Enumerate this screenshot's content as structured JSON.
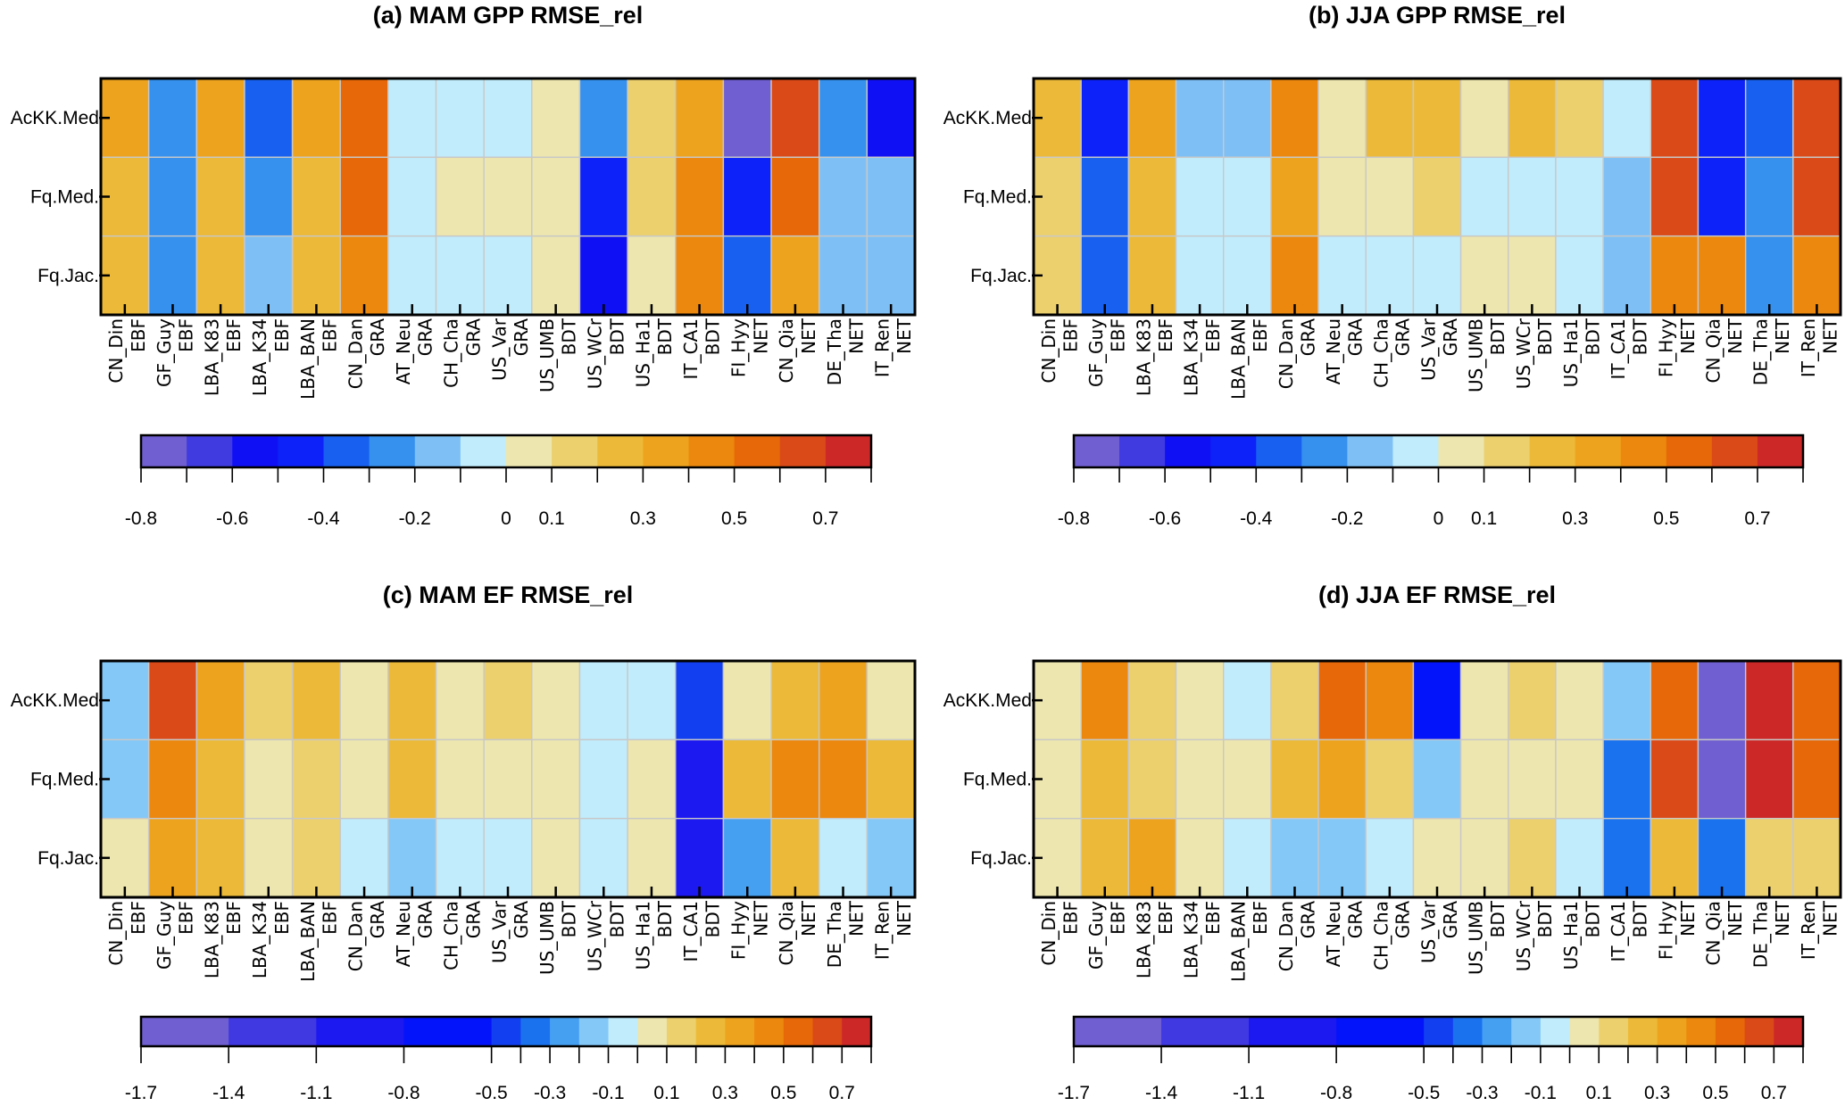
{
  "chart_data": [
    {
      "type": "heatmap",
      "id": "a",
      "title": "(a) MAM GPP RMSE_rel",
      "rows": [
        "AcKK.Med",
        "Fq.Med.",
        "Fq.Jac."
      ],
      "columns": [
        [
          "CN_Din",
          "EBF"
        ],
        [
          "GF_Guy",
          "EBF"
        ],
        [
          "LBA_K83",
          "EBF"
        ],
        [
          "LBA_K34",
          "EBF"
        ],
        [
          "LBA_BAN",
          "EBF"
        ],
        [
          "CN_Dan",
          "GRA"
        ],
        [
          "AT_Neu",
          "GRA"
        ],
        [
          "CH_Cha",
          "GRA"
        ],
        [
          "US_Var",
          "GRA"
        ],
        [
          "US_UMB",
          "BDT"
        ],
        [
          "US_WCr",
          "BDT"
        ],
        [
          "US_Ha1",
          "BDT"
        ],
        [
          "IT_CA1",
          "BDT"
        ],
        [
          "FI_Hyy",
          "NET"
        ],
        [
          "CN_Qia",
          "NET"
        ],
        [
          "DE_Tha",
          "NET"
        ],
        [
          "IT_Ren",
          "NET"
        ]
      ],
      "values": [
        [
          0.35,
          -0.25,
          0.35,
          -0.35,
          0.35,
          0.55,
          -0.05,
          -0.05,
          -0.05,
          0.05,
          -0.25,
          0.15,
          0.35,
          -0.75,
          0.65,
          -0.25,
          -0.55
        ],
        [
          0.25,
          -0.25,
          0.25,
          -0.25,
          0.25,
          0.55,
          -0.05,
          0.05,
          0.05,
          0.05,
          -0.45,
          0.15,
          0.45,
          -0.45,
          0.55,
          -0.15,
          -0.15
        ],
        [
          0.25,
          -0.25,
          0.25,
          -0.15,
          0.25,
          0.45,
          -0.05,
          -0.05,
          -0.05,
          0.05,
          -0.55,
          0.05,
          0.45,
          -0.35,
          0.35,
          -0.15,
          -0.15
        ]
      ],
      "colorbar": "gpp"
    },
    {
      "type": "heatmap",
      "id": "b",
      "title": "(b) JJA GPP RMSE_rel",
      "rows": [
        "AcKK.Med",
        "Fq.Med.",
        "Fq.Jac."
      ],
      "columns": [
        [
          "CN_Din",
          "EBF"
        ],
        [
          "GF_Guy",
          "EBF"
        ],
        [
          "LBA_K83",
          "EBF"
        ],
        [
          "LBA_K34",
          "EBF"
        ],
        [
          "LBA_BAN",
          "EBF"
        ],
        [
          "CN_Dan",
          "GRA"
        ],
        [
          "AT_Neu",
          "GRA"
        ],
        [
          "CH_Cha",
          "GRA"
        ],
        [
          "US_Var",
          "GRA"
        ],
        [
          "US_UMB",
          "BDT"
        ],
        [
          "US_WCr",
          "BDT"
        ],
        [
          "US_Ha1",
          "BDT"
        ],
        [
          "IT_CA1",
          "BDT"
        ],
        [
          "FI_Hyy",
          "NET"
        ],
        [
          "CN_Qia",
          "NET"
        ],
        [
          "DE_Tha",
          "NET"
        ],
        [
          "IT_Ren",
          "NET"
        ]
      ],
      "values": [
        [
          0.25,
          -0.45,
          0.35,
          -0.15,
          -0.15,
          0.45,
          0.05,
          0.25,
          0.25,
          0.05,
          0.25,
          0.15,
          -0.05,
          0.65,
          -0.45,
          -0.35,
          0.65
        ],
        [
          0.15,
          -0.35,
          0.25,
          -0.05,
          -0.05,
          0.35,
          0.05,
          0.05,
          0.15,
          -0.05,
          -0.05,
          -0.05,
          -0.15,
          0.65,
          -0.45,
          -0.25,
          0.65
        ],
        [
          0.15,
          -0.35,
          0.25,
          -0.05,
          -0.05,
          0.45,
          -0.05,
          -0.05,
          -0.05,
          0.05,
          0.05,
          -0.05,
          -0.15,
          0.45,
          0.45,
          -0.25,
          0.45
        ]
      ],
      "colorbar": "gpp"
    },
    {
      "type": "heatmap",
      "id": "c",
      "title": "(c) MAM EF RMSE_rel",
      "rows": [
        "AcKK.Med",
        "Fq.Med.",
        "Fq.Jac."
      ],
      "columns": [
        [
          "CN_Din",
          "EBF"
        ],
        [
          "GF_Guy",
          "EBF"
        ],
        [
          "LBA_K83",
          "EBF"
        ],
        [
          "LBA_K34",
          "EBF"
        ],
        [
          "LBA_BAN",
          "EBF"
        ],
        [
          "CN_Dan",
          "GRA"
        ],
        [
          "AT_Neu",
          "GRA"
        ],
        [
          "CH_Cha",
          "GRA"
        ],
        [
          "US_Var",
          "GRA"
        ],
        [
          "US_UMB",
          "BDT"
        ],
        [
          "US_WCr",
          "BDT"
        ],
        [
          "US_Ha1",
          "BDT"
        ],
        [
          "IT_CA1",
          "BDT"
        ],
        [
          "FI_Hyy",
          "NET"
        ],
        [
          "CN_Qia",
          "NET"
        ],
        [
          "DE_Tha",
          "NET"
        ],
        [
          "IT_Ren",
          "NET"
        ]
      ],
      "values": [
        [
          -0.15,
          0.65,
          0.35,
          0.15,
          0.25,
          0.05,
          0.25,
          0.05,
          0.15,
          0.05,
          -0.05,
          -0.05,
          -0.45,
          0.05,
          0.25,
          0.35,
          0.05
        ],
        [
          -0.15,
          0.45,
          0.25,
          0.05,
          0.15,
          0.05,
          0.25,
          0.05,
          0.05,
          0.05,
          -0.05,
          0.05,
          -0.95,
          0.25,
          0.45,
          0.45,
          0.25
        ],
        [
          0.05,
          0.35,
          0.25,
          0.05,
          0.15,
          -0.05,
          -0.15,
          -0.05,
          -0.05,
          0.05,
          -0.05,
          0.05,
          -0.95,
          -0.25,
          0.25,
          -0.05,
          -0.15
        ]
      ],
      "colorbar": "ef"
    },
    {
      "type": "heatmap",
      "id": "d",
      "title": "(d) JJA EF RMSE_rel",
      "rows": [
        "AcKK.Med",
        "Fq.Med.",
        "Fq.Jac."
      ],
      "columns": [
        [
          "CN_Din",
          "EBF"
        ],
        [
          "GF_Guy",
          "EBF"
        ],
        [
          "LBA_K83",
          "EBF"
        ],
        [
          "LBA_K34",
          "EBF"
        ],
        [
          "LBA_BAN",
          "EBF"
        ],
        [
          "CN_Dan",
          "GRA"
        ],
        [
          "AT_Neu",
          "GRA"
        ],
        [
          "CH_Cha",
          "GRA"
        ],
        [
          "US_Var",
          "GRA"
        ],
        [
          "US_UMB",
          "BDT"
        ],
        [
          "US_WCr",
          "BDT"
        ],
        [
          "US_Ha1",
          "BDT"
        ],
        [
          "IT_CA1",
          "BDT"
        ],
        [
          "FI_Hyy",
          "NET"
        ],
        [
          "CN_Qia",
          "NET"
        ],
        [
          "DE_Tha",
          "NET"
        ],
        [
          "IT_Ren",
          "NET"
        ]
      ],
      "values": [
        [
          0.05,
          0.45,
          0.15,
          0.05,
          -0.05,
          0.15,
          0.55,
          0.45,
          -0.65,
          0.05,
          0.15,
          0.05,
          -0.15,
          0.55,
          -1.55,
          0.75,
          0.55
        ],
        [
          0.05,
          0.25,
          0.15,
          0.05,
          0.05,
          0.25,
          0.35,
          0.15,
          -0.15,
          0.05,
          0.05,
          0.05,
          -0.35,
          0.65,
          -1.55,
          0.75,
          0.55
        ],
        [
          0.05,
          0.25,
          0.35,
          0.05,
          -0.05,
          -0.15,
          -0.15,
          -0.05,
          0.05,
          0.05,
          0.15,
          -0.05,
          -0.35,
          0.25,
          -0.35,
          0.15,
          0.15
        ]
      ],
      "colorbar": "ef"
    }
  ],
  "colorbars": {
    "gpp": {
      "boundaries": [
        -0.8,
        -0.7,
        -0.6,
        -0.5,
        -0.4,
        -0.3,
        -0.2,
        -0.1,
        0,
        0.1,
        0.2,
        0.3,
        0.4,
        0.5,
        0.6,
        0.7,
        0.8
      ],
      "colors": [
        "#6f5fd0",
        "#3f3be0",
        "#1010f5",
        "#0c22f8",
        "#1860f0",
        "#3590ee",
        "#7ec0f6",
        "#c0ecfc",
        "#ede6ae",
        "#ecd06e",
        "#ecba38",
        "#eea31e",
        "#ec880e",
        "#e66808",
        "#da4a18",
        "#cc2828"
      ],
      "tick_labels": [
        "-0.8",
        "-0.6",
        "-0.4",
        "-0.2",
        "0",
        "0.1",
        "0.3",
        "0.5",
        "0.7"
      ],
      "tick_label_values": [
        -0.8,
        -0.6,
        -0.4,
        -0.2,
        0,
        0.1,
        0.3,
        0.5,
        0.7
      ],
      "equal_spacing": true
    },
    "ef": {
      "boundaries": [
        -1.7,
        -1.4,
        -1.1,
        -0.8,
        -0.5,
        -0.4,
        -0.3,
        -0.2,
        -0.1,
        0,
        0.1,
        0.2,
        0.3,
        0.4,
        0.5,
        0.6,
        0.7,
        0.8
      ],
      "colors": [
        "#6f5fd0",
        "#4038e0",
        "#1c18f0",
        "#0414fa",
        "#1240f0",
        "#1a72ee",
        "#46a0f2",
        "#84c8f8",
        "#c0ecfc",
        "#ede6ae",
        "#ecd06e",
        "#ecba38",
        "#eea31e",
        "#ec880e",
        "#e66808",
        "#da4a18",
        "#cc2828"
      ],
      "tick_labels": [
        "-1.7",
        "-1.4",
        "-1.1",
        "-0.8",
        "-0.5",
        "-0.3",
        "-0.1",
        "0.1",
        "0.3",
        "0.5",
        "0.7"
      ],
      "tick_label_values": [
        -1.7,
        -1.4,
        -1.1,
        -0.8,
        -0.5,
        -0.3,
        -0.1,
        0.1,
        0.3,
        0.5,
        0.7
      ],
      "equal_spacing": false
    }
  }
}
